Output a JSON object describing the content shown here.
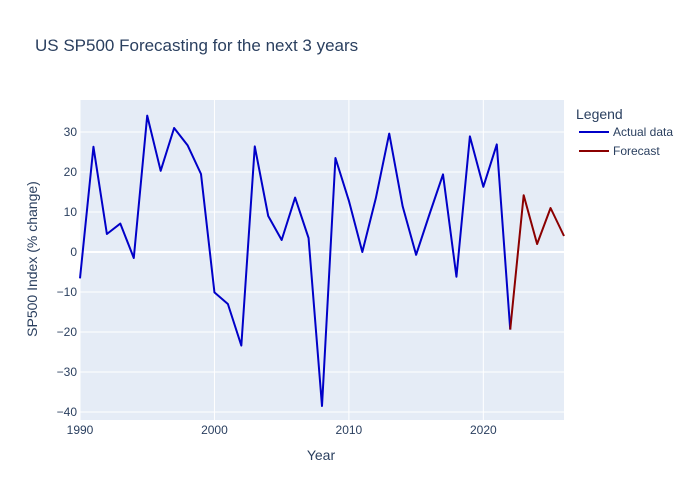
{
  "chart_data": {
    "type": "line",
    "title": "US SP500 Forecasting for the next 3 years",
    "xlabel": "Year",
    "ylabel": "SP500 Index (% change)",
    "xlim": [
      1990,
      2026
    ],
    "ylim": [
      -42,
      38
    ],
    "xticks": [
      1990,
      2000,
      2010,
      2020
    ],
    "yticks": [
      -40,
      -30,
      -20,
      -10,
      0,
      10,
      20,
      30
    ],
    "grid": true,
    "legend": {
      "title": "Legend",
      "position": "right"
    },
    "series": [
      {
        "name": "Actual data",
        "color": "#0000c8",
        "x": [
          1990,
          1991,
          1992,
          1993,
          1994,
          1995,
          1996,
          1997,
          1998,
          1999,
          2000,
          2001,
          2002,
          2003,
          2004,
          2005,
          2006,
          2007,
          2008,
          2009,
          2010,
          2011,
          2012,
          2013,
          2014,
          2015,
          2016,
          2017,
          2018,
          2019,
          2020,
          2021,
          2022
        ],
        "y": [
          -6.6,
          26.3,
          4.5,
          7.1,
          -1.5,
          34.1,
          20.3,
          31.0,
          26.7,
          19.5,
          -10.1,
          -13.0,
          -23.4,
          26.4,
          9.0,
          3.0,
          13.6,
          3.5,
          -38.5,
          23.5,
          12.8,
          0.0,
          13.4,
          29.6,
          11.4,
          -0.7,
          9.5,
          19.4,
          -6.2,
          28.9,
          16.3,
          26.9,
          -19.4
        ]
      },
      {
        "name": "Forecast",
        "color": "#8b0000",
        "x": [
          2022,
          2023,
          2024,
          2025,
          2026
        ],
        "y": [
          -19.4,
          14.2,
          2.0,
          11.0,
          4.0
        ]
      }
    ]
  }
}
